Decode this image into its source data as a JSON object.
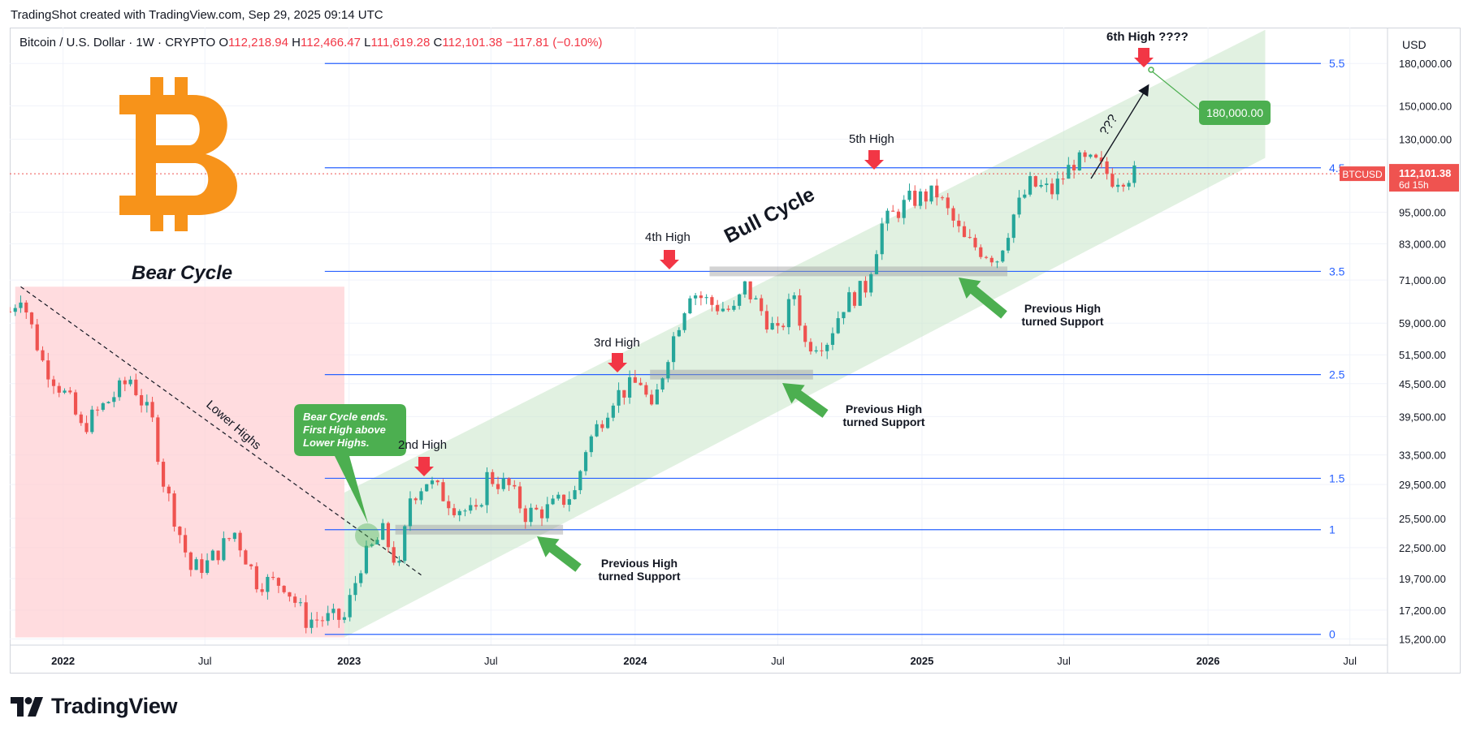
{
  "header": {
    "created_by": "TradingShot created with TradingView.com, Sep 29, 2025 09:14 UTC"
  },
  "legend": {
    "symbol": "Bitcoin / U.S. Dollar · 1W · CRYPTO",
    "o_label": "O",
    "o_value": "112,218.94",
    "h_label": "H",
    "h_value": "112,466.47",
    "l_label": "L",
    "l_value": "111,619.28",
    "c_label": "C",
    "c_value": "112,101.38",
    "change": "−117.81 (−0.10%)"
  },
  "price_axis": {
    "currency": "USD",
    "ticks": [
      "180,000.00",
      "150,000.00",
      "130,000.00",
      "95,000.00",
      "83,000.00",
      "71,000.00",
      "59,000.00",
      "51,500.00",
      "45,500.00",
      "39,500.00",
      "33,500.00",
      "29,500.00",
      "25,500.00",
      "22,500.00",
      "19,700.00",
      "17,200.00",
      "15,200.00"
    ],
    "current_symbol": "BTCUSD",
    "current_price": "112,101.38",
    "countdown": "6d 15h"
  },
  "time_axis": {
    "ticks": [
      "2022",
      "Jul",
      "2023",
      "Jul",
      "2024",
      "Jul",
      "2025",
      "Jul",
      "2026",
      "Jul"
    ]
  },
  "fib_levels": [
    "5.5",
    "4.5",
    "3.5",
    "2.5",
    "1.5",
    "1",
    "0"
  ],
  "annotations": {
    "bear_cycle": "Bear Cycle",
    "bull_cycle": "Bull Cycle",
    "lower_highs": "Lower Highs",
    "bear_cycle_ends": [
      "Bear Cycle ends.",
      "First High above",
      "Lower Highs."
    ],
    "high_2": "2nd High",
    "high_3": "3rd High",
    "high_4": "4th High",
    "high_5": "5th High",
    "high_6": "6th High ????",
    "question": "???",
    "target_label": "180,000.00",
    "support_1": [
      "Previous High",
      "turned Support"
    ],
    "support_2": [
      "Previous High",
      "turned Support"
    ],
    "support_3": [
      "Previous High",
      "turned Support"
    ]
  },
  "branding": {
    "tradingview": "TradingView"
  },
  "colors": {
    "up": "#26a69a",
    "down": "#ef5350",
    "fib_line": "#2962ff",
    "bull_channel": "#c8e6c9",
    "bear_zone": "#ffcdd2",
    "bitcoin_orange": "#f7931a",
    "annotation_green": "#4caf50",
    "arrow_red": "#f23645"
  },
  "chart_data": {
    "type": "candlestick",
    "scale": "log",
    "interval": "1W",
    "xlim": [
      "2021-10-25",
      "2026-08-17"
    ],
    "ylim": [
      14800,
      210000
    ],
    "price_ticks": [
      180000,
      150000,
      130000,
      95000,
      83000,
      71000,
      59000,
      51500,
      45500,
      39500,
      33500,
      29500,
      25500,
      22500,
      19700,
      17200,
      15200
    ],
    "fib_prices": {
      "5.5": 180000,
      "4.5": 115000,
      "3.5": 73700,
      "2.5": 47300,
      "1.5": 30300,
      "1": 24300,
      "0": 15500
    },
    "current_price": 112101.38,
    "price_path": [
      [
        "2021-10-25",
        62000
      ],
      [
        "2021-11-08",
        67000
      ],
      [
        "2021-12-06",
        50000
      ],
      [
        "2022-01-10",
        42000
      ],
      [
        "2022-01-24",
        37500
      ],
      [
        "2022-03-28",
        46500
      ],
      [
        "2022-04-25",
        38500
      ],
      [
        "2022-05-09",
        30000
      ],
      [
        "2022-06-13",
        20500
      ],
      [
        "2022-07-04",
        21000
      ],
      [
        "2022-08-08",
        24000
      ],
      [
        "2022-09-05",
        19500
      ],
      [
        "2022-10-10",
        19300
      ],
      [
        "2022-11-07",
        16500
      ],
      [
        "2022-12-26",
        16600
      ],
      [
        "2023-01-16",
        21000
      ],
      [
        "2023-02-13",
        24000
      ],
      [
        "2023-03-06",
        20500
      ],
      [
        "2023-03-20",
        28000
      ],
      [
        "2023-04-10",
        30000
      ],
      [
        "2023-05-15",
        27000
      ],
      [
        "2023-06-12",
        25800
      ],
      [
        "2023-06-26",
        30500
      ],
      [
        "2023-07-24",
        29200
      ],
      [
        "2023-08-14",
        26000
      ],
      [
        "2023-09-11",
        26500
      ],
      [
        "2023-10-16",
        28500
      ],
      [
        "2023-10-30",
        34500
      ],
      [
        "2023-12-04",
        43000
      ],
      [
        "2024-01-08",
        46000
      ],
      [
        "2024-01-22",
        40000
      ],
      [
        "2024-02-12",
        52000
      ],
      [
        "2024-03-11",
        68000
      ],
      [
        "2024-04-08",
        64000
      ],
      [
        "2024-05-06",
        62000
      ],
      [
        "2024-05-20",
        69000
      ],
      [
        "2024-07-01",
        56000
      ],
      [
        "2024-07-22",
        67000
      ],
      [
        "2024-08-05",
        54000
      ],
      [
        "2024-09-02",
        55000
      ],
      [
        "2024-09-23",
        64000
      ],
      [
        "2024-10-21",
        69000
      ],
      [
        "2024-11-11",
        90000
      ],
      [
        "2024-12-16",
        100000
      ],
      [
        "2025-01-20",
        103000
      ],
      [
        "2025-02-24",
        84000
      ],
      [
        "2025-04-07",
        78000
      ],
      [
        "2025-04-28",
        94000
      ],
      [
        "2025-05-19",
        107000
      ],
      [
        "2025-06-16",
        104000
      ],
      [
        "2025-07-14",
        118000
      ],
      [
        "2025-08-11",
        117000
      ],
      [
        "2025-09-01",
        110000
      ],
      [
        "2025-09-29",
        112100
      ]
    ]
  }
}
